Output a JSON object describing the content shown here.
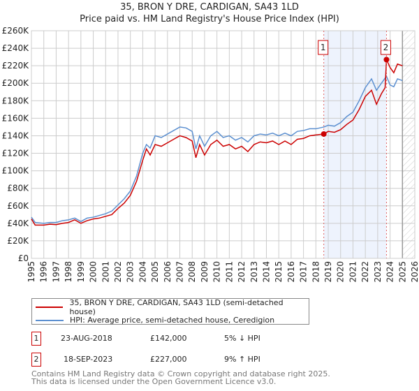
{
  "title_line1": "35, BRON Y DRE, CARDIGAN, SA43 1LD",
  "title_line2": "Price paid vs. HM Land Registry's House Price Index (HPI)",
  "chart_data": {
    "type": "line",
    "xlim": [
      1995,
      2026
    ],
    "ylim": [
      0,
      260000
    ],
    "yticks": [
      0,
      20000,
      40000,
      60000,
      80000,
      100000,
      120000,
      140000,
      160000,
      180000,
      200000,
      220000,
      240000,
      260000
    ],
    "ytick_labels": [
      "£0",
      "£20K",
      "£40K",
      "£60K",
      "£80K",
      "£100K",
      "£120K",
      "£140K",
      "£160K",
      "£180K",
      "£200K",
      "£220K",
      "£240K",
      "£260K"
    ],
    "xticks": [
      1995,
      1996,
      1997,
      1998,
      1999,
      2000,
      2001,
      2002,
      2003,
      2004,
      2005,
      2006,
      2007,
      2008,
      2009,
      2010,
      2011,
      2012,
      2013,
      2014,
      2015,
      2016,
      2017,
      2018,
      2019,
      2020,
      2021,
      2022,
      2023,
      2024,
      2025,
      2026
    ],
    "grid": true,
    "legend_placement": "below",
    "highlight_span": [
      2018.64,
      2023.71
    ],
    "future_hatch_from": 2025.0,
    "series": [
      {
        "name": "35, BRON Y DRE, CARDIGAN, SA43 1LD (semi-detached house)",
        "color": "#cc0000",
        "points": [
          [
            1995,
            45000
          ],
          [
            1995.3,
            38000
          ],
          [
            1996,
            38000
          ],
          [
            1996.5,
            39000
          ],
          [
            1997,
            38500
          ],
          [
            1997.5,
            40000
          ],
          [
            1998,
            41000
          ],
          [
            1998.5,
            44000
          ],
          [
            1999,
            40000
          ],
          [
            1999.5,
            43000
          ],
          [
            2000,
            45000
          ],
          [
            2000.5,
            46000
          ],
          [
            2001,
            48000
          ],
          [
            2001.5,
            50000
          ],
          [
            2002,
            57000
          ],
          [
            2002.5,
            63000
          ],
          [
            2003,
            72000
          ],
          [
            2003.5,
            88000
          ],
          [
            2004,
            112000
          ],
          [
            2004.3,
            125000
          ],
          [
            2004.6,
            118000
          ],
          [
            2005,
            130000
          ],
          [
            2005.5,
            128000
          ],
          [
            2006,
            132000
          ],
          [
            2006.5,
            136000
          ],
          [
            2007,
            140000
          ],
          [
            2007.5,
            138000
          ],
          [
            2008,
            134000
          ],
          [
            2008.3,
            115000
          ],
          [
            2008.6,
            130000
          ],
          [
            2009,
            118000
          ],
          [
            2009.5,
            130000
          ],
          [
            2010,
            135000
          ],
          [
            2010.5,
            128000
          ],
          [
            2011,
            130000
          ],
          [
            2011.5,
            125000
          ],
          [
            2012,
            128000
          ],
          [
            2012.5,
            122000
          ],
          [
            2013,
            130000
          ],
          [
            2013.5,
            133000
          ],
          [
            2014,
            132000
          ],
          [
            2014.5,
            134000
          ],
          [
            2015,
            130000
          ],
          [
            2015.5,
            134000
          ],
          [
            2016,
            130000
          ],
          [
            2016.5,
            136000
          ],
          [
            2017,
            137000
          ],
          [
            2017.5,
            140000
          ],
          [
            2018,
            141000
          ],
          [
            2018.64,
            142000
          ],
          [
            2019,
            145000
          ],
          [
            2019.5,
            144000
          ],
          [
            2020,
            147000
          ],
          [
            2020.5,
            153000
          ],
          [
            2021,
            158000
          ],
          [
            2021.5,
            170000
          ],
          [
            2022,
            185000
          ],
          [
            2022.5,
            192000
          ],
          [
            2022.9,
            176000
          ],
          [
            2023.3,
            188000
          ],
          [
            2023.6,
            195000
          ],
          [
            2023.71,
            227000
          ],
          [
            2024,
            218000
          ],
          [
            2024.3,
            212000
          ],
          [
            2024.6,
            222000
          ],
          [
            2025,
            220000
          ]
        ]
      },
      {
        "name": "HPI: Average price, semi-detached house, Ceredigion",
        "color": "#5b8fd0",
        "points": [
          [
            1995,
            47000
          ],
          [
            1995.3,
            41000
          ],
          [
            1996,
            40000
          ],
          [
            1996.5,
            41000
          ],
          [
            1997,
            41000
          ],
          [
            1997.5,
            43000
          ],
          [
            1998,
            44000
          ],
          [
            1998.5,
            46000
          ],
          [
            1999,
            42000
          ],
          [
            1999.5,
            46000
          ],
          [
            2000,
            47000
          ],
          [
            2000.5,
            49000
          ],
          [
            2001,
            51000
          ],
          [
            2001.5,
            54000
          ],
          [
            2002,
            61000
          ],
          [
            2002.5,
            68000
          ],
          [
            2003,
            77000
          ],
          [
            2003.5,
            94000
          ],
          [
            2004,
            120000
          ],
          [
            2004.3,
            130000
          ],
          [
            2004.6,
            126000
          ],
          [
            2005,
            140000
          ],
          [
            2005.5,
            138000
          ],
          [
            2006,
            142000
          ],
          [
            2006.5,
            146000
          ],
          [
            2007,
            150000
          ],
          [
            2007.5,
            149000
          ],
          [
            2008,
            145000
          ],
          [
            2008.3,
            125000
          ],
          [
            2008.6,
            140000
          ],
          [
            2009,
            128000
          ],
          [
            2009.5,
            140000
          ],
          [
            2010,
            145000
          ],
          [
            2010.5,
            138000
          ],
          [
            2011,
            140000
          ],
          [
            2011.5,
            135000
          ],
          [
            2012,
            138000
          ],
          [
            2012.5,
            133000
          ],
          [
            2013,
            140000
          ],
          [
            2013.5,
            142000
          ],
          [
            2014,
            141000
          ],
          [
            2014.5,
            143000
          ],
          [
            2015,
            140000
          ],
          [
            2015.5,
            143000
          ],
          [
            2016,
            140000
          ],
          [
            2016.5,
            145000
          ],
          [
            2017,
            146000
          ],
          [
            2017.5,
            148000
          ],
          [
            2018,
            148000
          ],
          [
            2018.64,
            150000
          ],
          [
            2019,
            152000
          ],
          [
            2019.5,
            151000
          ],
          [
            2020,
            155000
          ],
          [
            2020.5,
            162000
          ],
          [
            2021,
            167000
          ],
          [
            2021.5,
            180000
          ],
          [
            2022,
            195000
          ],
          [
            2022.5,
            205000
          ],
          [
            2022.9,
            192000
          ],
          [
            2023.3,
            200000
          ],
          [
            2023.71,
            208000
          ],
          [
            2024,
            198000
          ],
          [
            2024.3,
            196000
          ],
          [
            2024.6,
            205000
          ],
          [
            2025,
            203000
          ]
        ]
      }
    ],
    "annotations": [
      {
        "label": "1",
        "x": 2018.64,
        "y": 142000
      },
      {
        "label": "2",
        "x": 2023.71,
        "y": 227000
      }
    ]
  },
  "transactions": [
    {
      "num": "1",
      "date": "23-AUG-2018",
      "price": "£142,000",
      "hpi": "5% ↓ HPI"
    },
    {
      "num": "2",
      "date": "18-SEP-2023",
      "price": "£227,000",
      "hpi": "9% ↑ HPI"
    }
  ],
  "footer_line1": "Contains HM Land Registry data © Crown copyright and database right 2025.",
  "footer_line2": "This data is licensed under the Open Government Licence v3.0."
}
